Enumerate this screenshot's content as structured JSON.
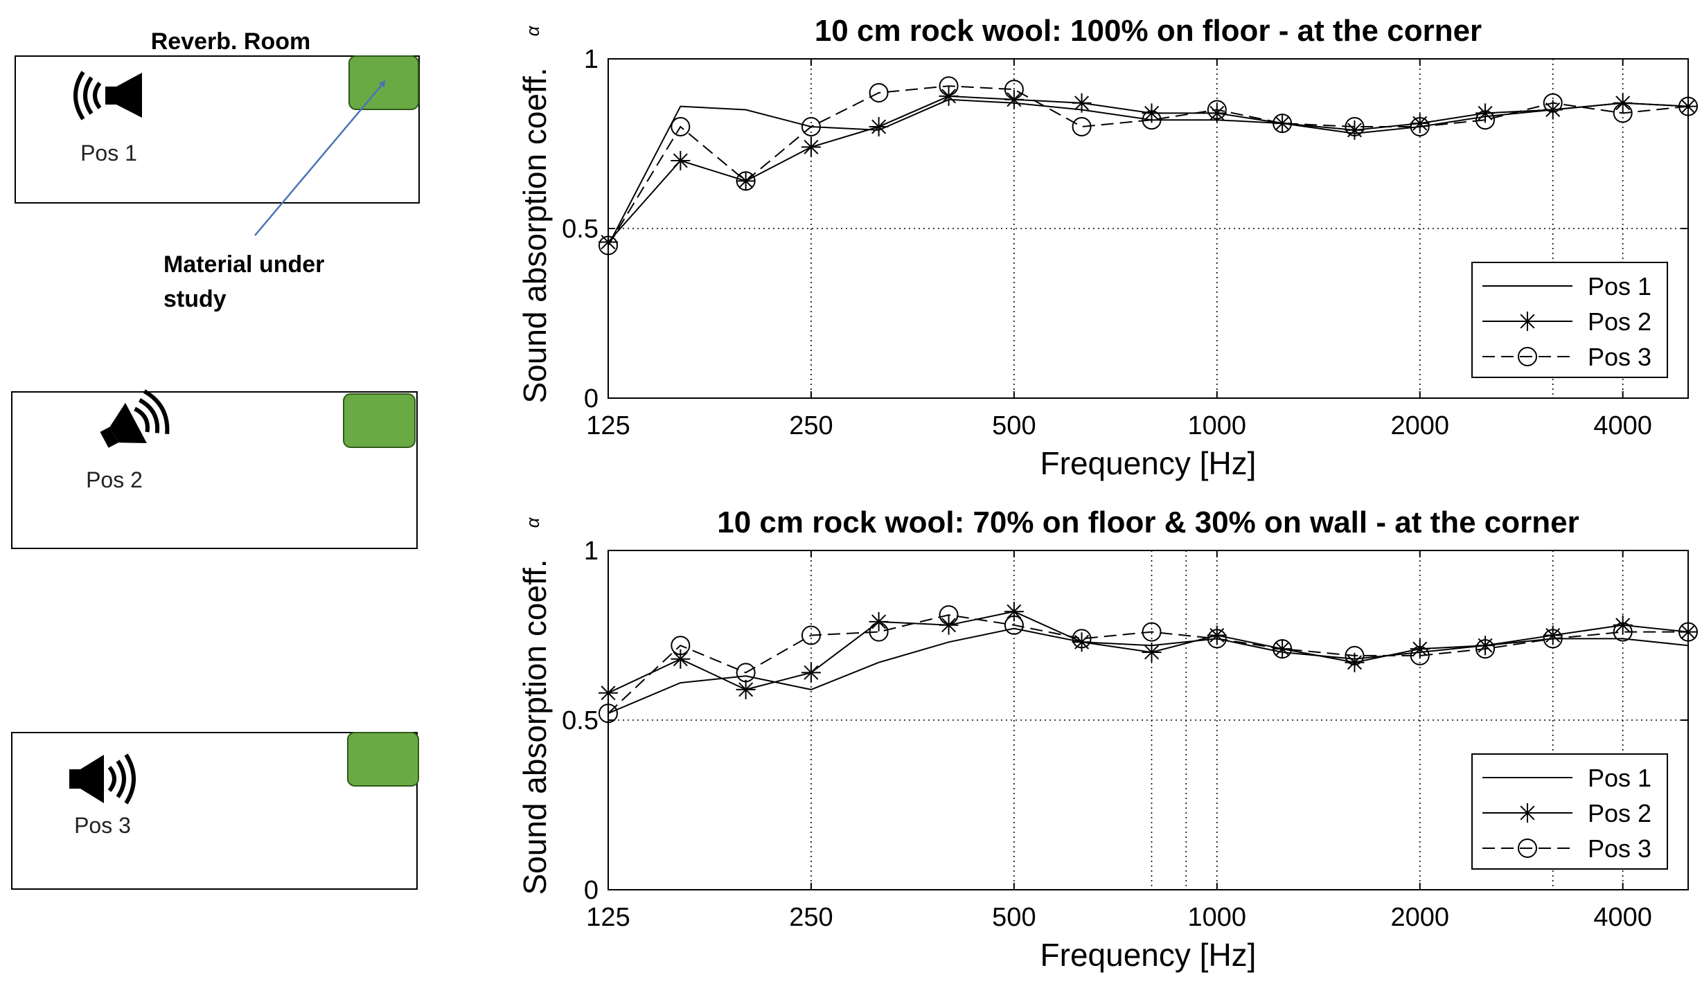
{
  "diagram": {
    "room_title": "Reverb. Room",
    "pos1_label": "Pos 1",
    "pos2_label": "Pos 2",
    "pos3_label": "Pos 3",
    "material_label_line1": "Material under",
    "material_label_line2": "study",
    "material_color": "#6aaa45",
    "arrow_color": "#4a74b4"
  },
  "chart_data": [
    {
      "type": "line",
      "title": "10 cm rock wool: 100% on floor - at the corner",
      "xlabel": "Frequency [Hz]",
      "ylabel": "Sound absorption coeff.",
      "ylabel_symbol": "α",
      "x_scale": "log",
      "xlim": [
        125,
        5000
      ],
      "ylim": [
        0,
        1
      ],
      "xticks": [
        125,
        250,
        500,
        1000,
        2000,
        4000
      ],
      "xtick_labels": [
        "125",
        "250",
        "500",
        "1000",
        "2000",
        "4000"
      ],
      "yticks": [
        0,
        0.5,
        1
      ],
      "ytick_labels": [
        "0",
        "0.5",
        "1"
      ],
      "grid": true,
      "extra_gridlines_x": [
        3150
      ],
      "legend_position": "lower-right",
      "x": [
        125,
        160,
        200,
        250,
        315,
        400,
        500,
        630,
        800,
        1000,
        1250,
        1600,
        2000,
        2500,
        3150,
        4000,
        5000
      ],
      "series": [
        {
          "name": "Pos 1",
          "style": "solid",
          "marker": "none",
          "values": [
            0.45,
            0.86,
            0.85,
            0.8,
            0.79,
            0.88,
            0.87,
            0.85,
            0.82,
            0.82,
            0.81,
            0.78,
            0.8,
            0.83,
            0.85,
            0.87,
            0.86
          ]
        },
        {
          "name": "Pos 2",
          "style": "solid",
          "marker": "star",
          "values": [
            0.46,
            0.7,
            0.64,
            0.74,
            0.8,
            0.89,
            0.88,
            0.87,
            0.84,
            0.84,
            0.81,
            0.79,
            0.81,
            0.84,
            0.85,
            0.87,
            0.86
          ]
        },
        {
          "name": "Pos 3",
          "style": "dashed",
          "marker": "circle",
          "values": [
            0.45,
            0.8,
            0.64,
            0.8,
            0.9,
            0.92,
            0.91,
            0.8,
            0.82,
            0.85,
            0.81,
            0.8,
            0.8,
            0.82,
            0.87,
            0.84,
            0.86
          ]
        }
      ]
    },
    {
      "type": "line",
      "title": "10 cm rock wool: 70% on floor & 30% on wall - at the corner",
      "xlabel": "Frequency [Hz]",
      "ylabel": "Sound absorption coeff.",
      "ylabel_symbol": "α",
      "x_scale": "log",
      "xlim": [
        125,
        5000
      ],
      "ylim": [
        0,
        1
      ],
      "xticks": [
        125,
        250,
        500,
        1000,
        2000,
        4000
      ],
      "xtick_labels": [
        "125",
        "250",
        "500",
        "1000",
        "2000",
        "4000"
      ],
      "yticks": [
        0,
        0.5,
        1
      ],
      "ytick_labels": [
        "0",
        "0.5",
        "1"
      ],
      "grid": true,
      "extra_gridlines_x": [
        800,
        900,
        3150
      ],
      "legend_position": "lower-right",
      "x": [
        125,
        160,
        200,
        250,
        315,
        400,
        500,
        630,
        800,
        1000,
        1250,
        1600,
        2000,
        2500,
        3150,
        4000,
        5000
      ],
      "series": [
        {
          "name": "Pos 1",
          "style": "solid",
          "marker": "none",
          "values": [
            0.52,
            0.61,
            0.63,
            0.59,
            0.67,
            0.73,
            0.77,
            0.73,
            0.72,
            0.74,
            0.7,
            0.68,
            0.7,
            0.72,
            0.74,
            0.74,
            0.72
          ]
        },
        {
          "name": "Pos 2",
          "style": "solid",
          "marker": "star",
          "values": [
            0.58,
            0.68,
            0.59,
            0.64,
            0.79,
            0.78,
            0.82,
            0.73,
            0.7,
            0.75,
            0.71,
            0.67,
            0.71,
            0.72,
            0.75,
            0.78,
            0.76
          ]
        },
        {
          "name": "Pos 3",
          "style": "dashed",
          "marker": "circle",
          "values": [
            0.52,
            0.72,
            0.64,
            0.75,
            0.76,
            0.81,
            0.78,
            0.74,
            0.76,
            0.74,
            0.71,
            0.69,
            0.69,
            0.71,
            0.74,
            0.76,
            0.76
          ]
        }
      ]
    }
  ]
}
